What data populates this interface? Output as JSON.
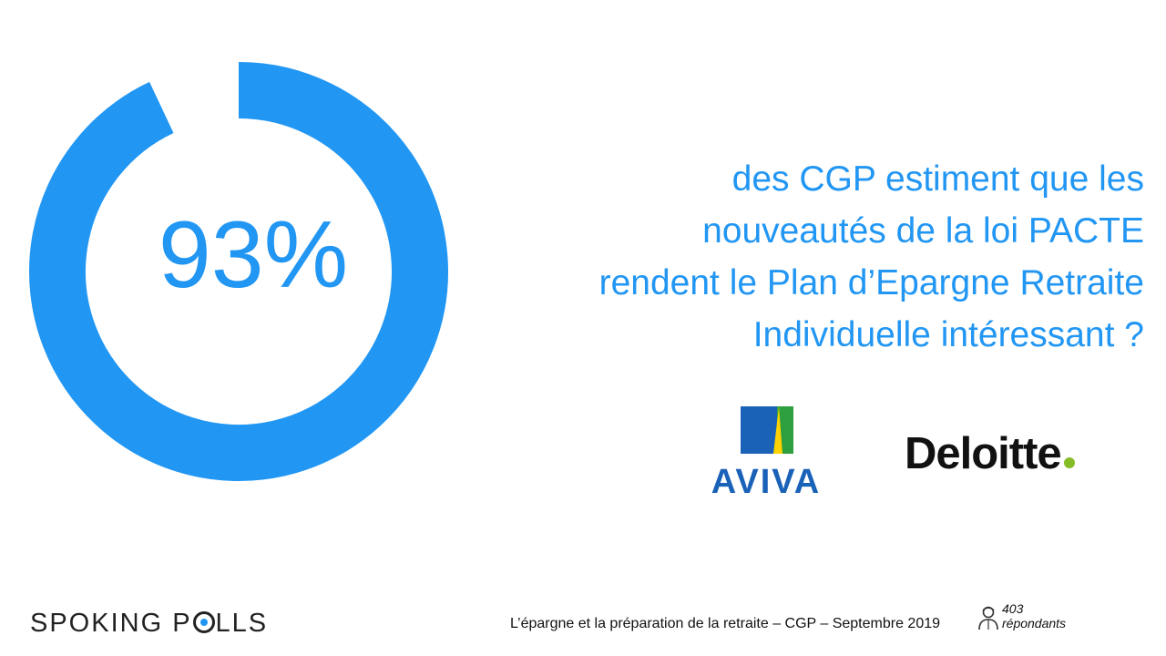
{
  "chart_data": {
    "type": "pie",
    "variant": "donut",
    "value": 93,
    "max": 100,
    "label": "93%",
    "color": "#2196F3"
  },
  "statement": {
    "lines": [
      "des CGP estiment que les",
      "nouveautés de la loi PACTE",
      "rendent le Plan d’Epargne Retraite",
      "Individuelle intéressant ?"
    ],
    "color": "#2196F3"
  },
  "logos": {
    "aviva": {
      "text": "AVIVA"
    },
    "deloitte": {
      "text": "Deloitte"
    }
  },
  "footer": {
    "brand_left": "SPOKING P",
    "brand_right": "LLS",
    "survey": "L’épargne et la préparation de la retraite – CGP – Septembre 2019",
    "respondents_count": "403",
    "respondents_label": "répondants",
    "respondents_icon": "person-icon"
  }
}
